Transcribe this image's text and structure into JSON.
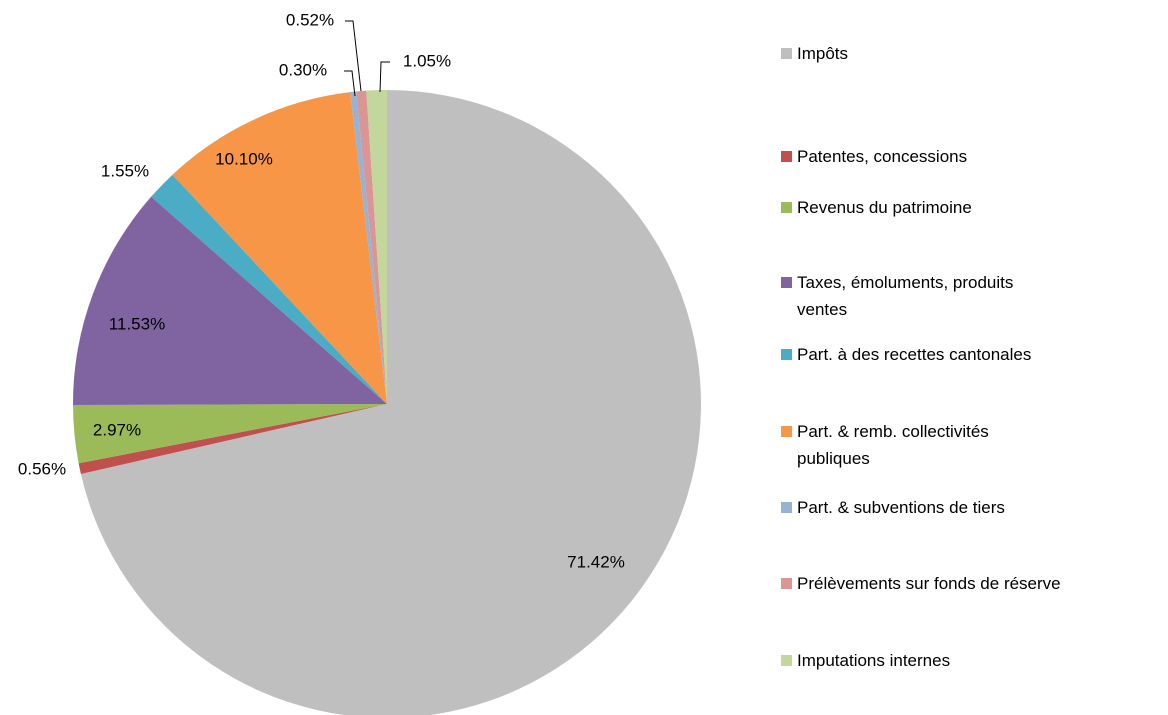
{
  "chart_data": {
    "type": "pie",
    "categories": [
      "Impôts",
      "Patentes, concessions",
      "Revenus du patrimoine",
      "Taxes, émoluments,  produits ventes",
      "Part. à des recettes cantonales",
      "Part. & remb. collectivités publiques",
      "Part. & subventions de tiers",
      "Prélèvements sur fonds de réserve",
      "Imputations  internes"
    ],
    "values": [
      71.42,
      0.56,
      2.97,
      11.53,
      1.55,
      10.1,
      0.3,
      0.52,
      1.05
    ],
    "value_labels": [
      "71.42%",
      "0.56%",
      "2.97%",
      "11.53%",
      "1.55%",
      "10.10%",
      "0.30%",
      "0.52%",
      "1.05%"
    ],
    "colors": [
      "#bfbfbf",
      "#c0504d",
      "#9bbb59",
      "#8064a2",
      "#4bacc6",
      "#f79646",
      "#95b3d7",
      "#d99694",
      "#c3d69b"
    ],
    "legend": "right"
  }
}
